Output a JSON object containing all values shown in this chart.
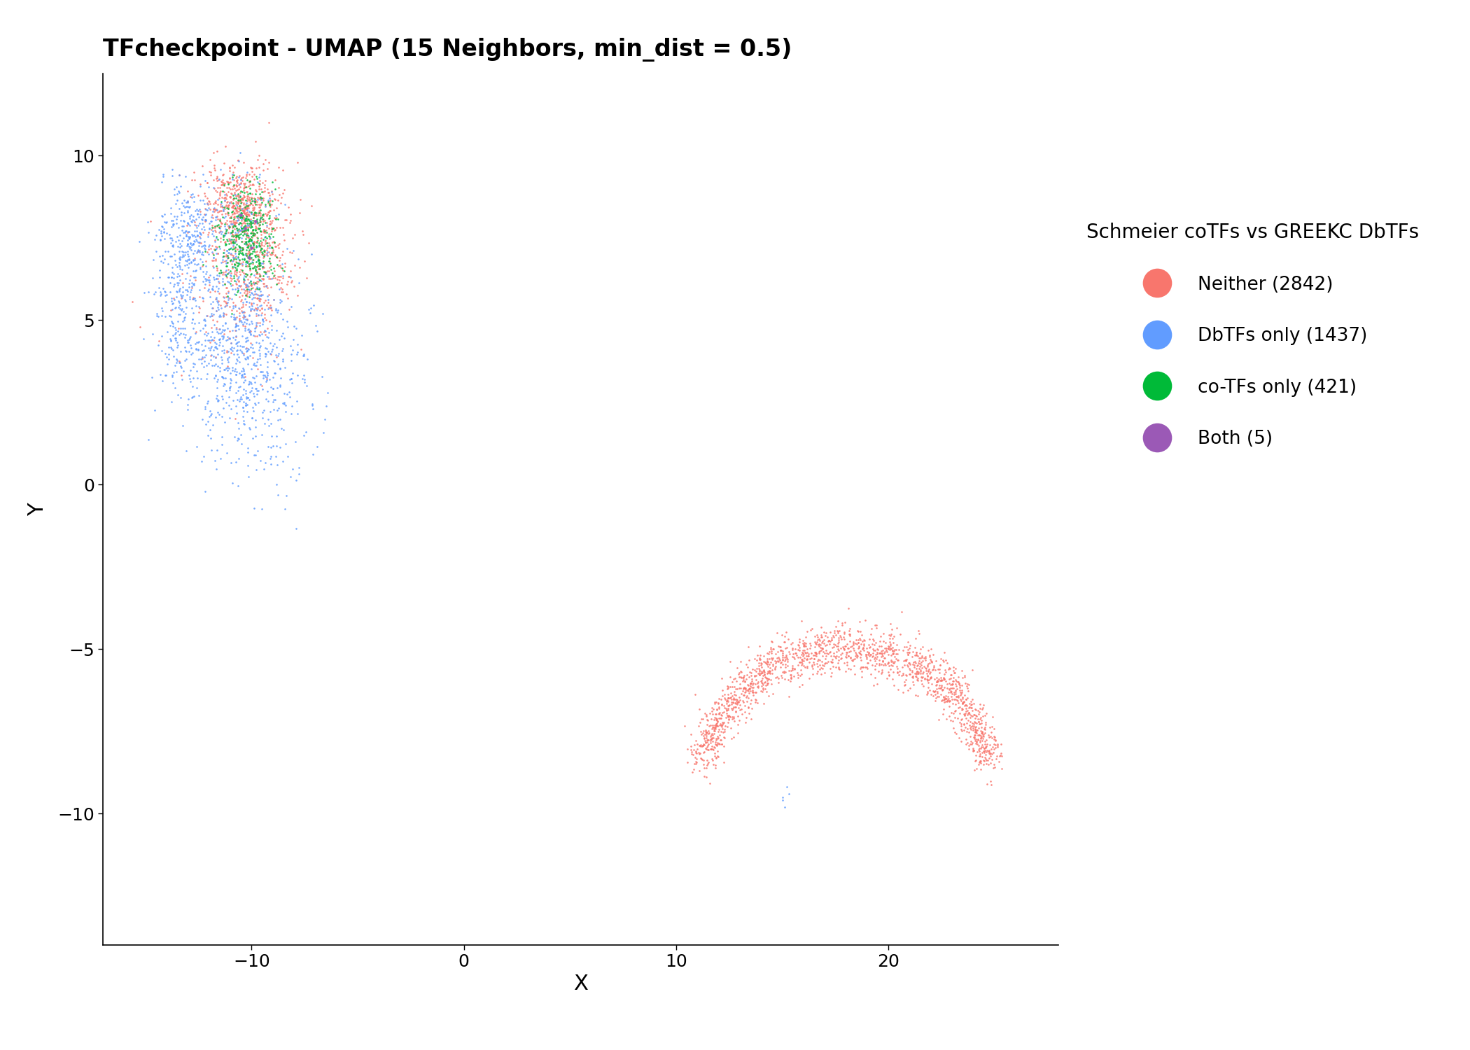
{
  "title": "TFcheckpoint - UMAP (15 Neighbors, min_dist = 0.5)",
  "xlabel": "X",
  "ylabel": "Y",
  "legend_title": "Schmeier coTFs vs GREEKC DbTFs",
  "categories": [
    {
      "name": "Neither (2842)",
      "color": "#F8766D",
      "n": 2842
    },
    {
      "name": "DbTFs only (1437)",
      "color": "#619CFF",
      "n": 1437
    },
    {
      "name": "co-TFs only (421)",
      "color": "#00BA38",
      "n": 421
    },
    {
      "name": "Both (5)",
      "color": "#9B59B6",
      "n": 5
    }
  ],
  "xlim": [
    -17.0,
    28.0
  ],
  "ylim": [
    -14.0,
    12.5
  ],
  "xticks": [
    -10,
    0,
    10,
    20
  ],
  "yticks": [
    -10,
    -5,
    0,
    5,
    10
  ],
  "background_color": "#ffffff",
  "title_fontsize": 24,
  "axis_label_fontsize": 22,
  "tick_fontsize": 18,
  "legend_fontsize": 19,
  "legend_title_fontsize": 20,
  "point_size": 3.5,
  "alpha": 0.85
}
